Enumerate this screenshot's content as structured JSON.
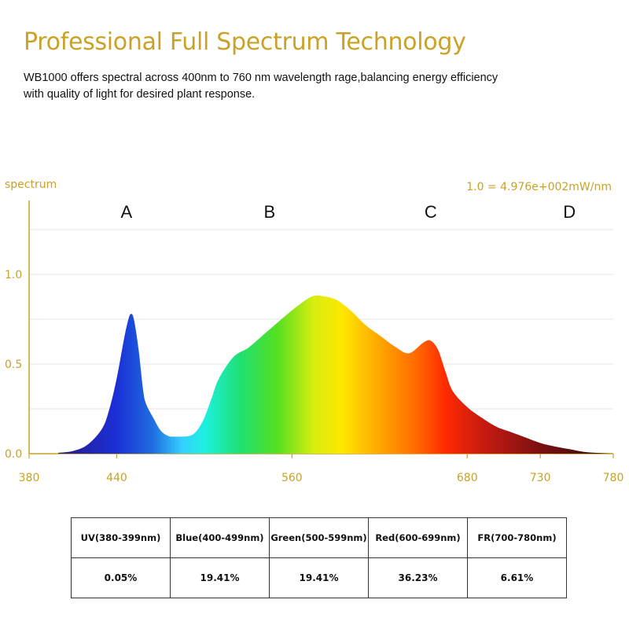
{
  "header": {
    "title": "Professional Full Spectrum Technology",
    "description_line1": "WB1000 offers spectral across 400nm to 760 nm wavelength rage,balancing energy efficiency",
    "description_line2": "with quality of light for desired plant response."
  },
  "chart_data": {
    "type": "area",
    "ylabel": "spectrum",
    "scale_note": "1.0 = 4.976e+002mW/nm",
    "x_ticks": [
      "380",
      "440",
      "560",
      "680",
      "730",
      "780"
    ],
    "y_ticks": [
      "0.0",
      "0.5",
      "1.0"
    ],
    "xlim": [
      380,
      780
    ],
    "ylim": [
      0,
      1.0
    ],
    "region_labels": [
      "A",
      "B",
      "C",
      "D"
    ],
    "x": [
      400,
      410,
      420,
      430,
      435,
      440,
      445,
      448,
      450,
      452,
      455,
      458,
      460,
      465,
      470,
      475,
      480,
      490,
      495,
      500,
      505,
      510,
      520,
      530,
      540,
      550,
      560,
      570,
      575,
      580,
      590,
      600,
      610,
      620,
      630,
      640,
      650,
      655,
      660,
      665,
      670,
      680,
      690,
      700,
      710,
      720,
      730,
      740,
      750,
      760,
      770,
      780
    ],
    "values": [
      0.005,
      0.015,
      0.05,
      0.14,
      0.25,
      0.42,
      0.64,
      0.75,
      0.78,
      0.74,
      0.58,
      0.36,
      0.28,
      0.2,
      0.13,
      0.1,
      0.095,
      0.1,
      0.13,
      0.2,
      0.31,
      0.42,
      0.54,
      0.59,
      0.66,
      0.73,
      0.8,
      0.86,
      0.88,
      0.88,
      0.86,
      0.8,
      0.72,
      0.66,
      0.6,
      0.56,
      0.62,
      0.63,
      0.58,
      0.46,
      0.35,
      0.26,
      0.2,
      0.15,
      0.12,
      0.09,
      0.06,
      0.04,
      0.025,
      0.01,
      0.004,
      0.0
    ],
    "color_stops": [
      {
        "nm": 400,
        "color": "#2b1a8c"
      },
      {
        "nm": 440,
        "color": "#1a2fd6"
      },
      {
        "nm": 465,
        "color": "#1f6fe0"
      },
      {
        "nm": 485,
        "color": "#34d0ff"
      },
      {
        "nm": 500,
        "color": "#1ef0e0"
      },
      {
        "nm": 525,
        "color": "#1fe070"
      },
      {
        "nm": 550,
        "color": "#55e020"
      },
      {
        "nm": 575,
        "color": "#d8ee10"
      },
      {
        "nm": 595,
        "color": "#ffe600"
      },
      {
        "nm": 620,
        "color": "#ffa600"
      },
      {
        "nm": 645,
        "color": "#ff6a00"
      },
      {
        "nm": 665,
        "color": "#ff2a00"
      },
      {
        "nm": 690,
        "color": "#c81b10"
      },
      {
        "nm": 730,
        "color": "#7a1010"
      },
      {
        "nm": 780,
        "color": "#2a0c0c"
      }
    ],
    "axis_color": "#c9a227"
  },
  "table": {
    "headers": [
      "UV(380-399nm)",
      "Blue(400-499nm)",
      "Green(500-599nm)",
      "Red(600-699nm)",
      "FR(700-780nm)"
    ],
    "values": [
      "0.05%",
      "19.41%",
      "19.41%",
      "36.23%",
      "6.61%"
    ]
  }
}
